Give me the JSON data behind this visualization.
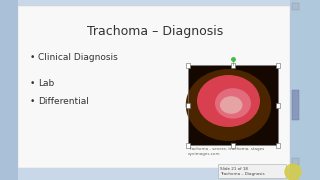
{
  "title": "Trachoma – Diagnosis",
  "bullets": [
    "Clinical Diagnosis",
    "Lab",
    "Differential"
  ],
  "title_color": "#333333",
  "bullet_color": "#333333",
  "title_fontsize": 9,
  "bullet_fontsize": 6.5,
  "slide_bg": "#c8d8e8",
  "slide_white": "#f8f8f8",
  "left_panel_color": "#aabfd8",
  "right_panel_color": "#b0c8dc",
  "image_caption": "Trachoma - severe, trachoma, stages\neyeimages.com",
  "slide_label_1": "Slide 21 of 18",
  "slide_label_2": "Trachoma – Diagnosis",
  "scrollbar_color": "#c0d0e0",
  "info_box_color": "#f0f0f0",
  "yellow_circle": "#d4cc44"
}
